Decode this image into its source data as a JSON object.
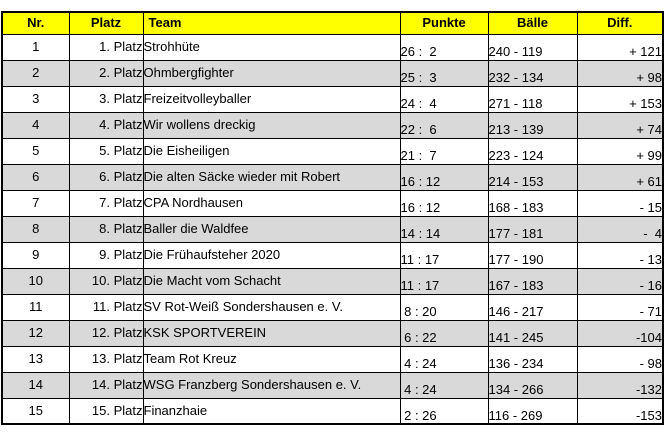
{
  "colors": {
    "header_bg": "#ffff00",
    "row_alt_bg": "#d9d9d9",
    "border": "#000000",
    "text": "#000000"
  },
  "table": {
    "columns": [
      {
        "key": "nr",
        "label": "Nr."
      },
      {
        "key": "platz",
        "label": "Platz"
      },
      {
        "key": "team",
        "label": "Team"
      },
      {
        "key": "punkte",
        "label": "Punkte"
      },
      {
        "key": "baelle",
        "label": "Bälle"
      },
      {
        "key": "diff",
        "label": "Diff."
      }
    ],
    "rows": [
      {
        "nr": "1",
        "platz": "1. Platz",
        "team": "Strohhüte",
        "punkte": "26 :  2",
        "baelle": "240 - 119",
        "diff": "+ 121"
      },
      {
        "nr": "2",
        "platz": "2. Platz",
        "team": "Ohmbergfighter",
        "punkte": "25 :  3",
        "baelle": "232 - 134",
        "diff": "+ 98"
      },
      {
        "nr": "3",
        "platz": "3. Platz",
        "team": "Freizeitvolleyballer",
        "punkte": "24 :  4",
        "baelle": "271 - 118",
        "diff": "+ 153"
      },
      {
        "nr": "4",
        "platz": "4. Platz",
        "team": "Wir wollens dreckig",
        "punkte": "22 :  6",
        "baelle": "213 - 139",
        "diff": "+ 74"
      },
      {
        "nr": "5",
        "platz": "5. Platz",
        "team": "Die Eisheiligen",
        "punkte": "21 :  7",
        "baelle": "223 - 124",
        "diff": "+ 99"
      },
      {
        "nr": "6",
        "platz": "6. Platz",
        "team": "Die alten Säcke wieder mit Robert",
        "punkte": "16 : 12",
        "baelle": "214 - 153",
        "diff": "+ 61"
      },
      {
        "nr": "7",
        "platz": "7. Platz",
        "team": "CPA Nordhausen",
        "punkte": "16 : 12",
        "baelle": "168 - 183",
        "diff": "- 15"
      },
      {
        "nr": "8",
        "platz": "8. Platz",
        "team": "Baller die Waldfee",
        "punkte": "14 : 14",
        "baelle": "177 - 181",
        "diff": "-  4"
      },
      {
        "nr": "9",
        "platz": "9. Platz",
        "team": "Die Frühaufsteher 2020",
        "punkte": "11 : 17",
        "baelle": "177 - 190",
        "diff": "- 13"
      },
      {
        "nr": "10",
        "platz": "10. Platz",
        "team": "Die Macht vom Schacht",
        "punkte": "11 : 17",
        "baelle": "167 - 183",
        "diff": "- 16"
      },
      {
        "nr": "11",
        "platz": "11. Platz",
        "team": "SV Rot-Weiß Sondershausen e. V.",
        "punkte": " 8 : 20",
        "baelle": "146 - 217",
        "diff": "- 71"
      },
      {
        "nr": "12",
        "platz": "12. Platz",
        "team": "KSK SPORTVEREIN",
        "punkte": " 6 : 22",
        "baelle": "141 - 245",
        "diff": "-104"
      },
      {
        "nr": "13",
        "platz": "13. Platz",
        "team": "Team Rot Kreuz",
        "punkte": " 4 : 24",
        "baelle": "136 - 234",
        "diff": "- 98"
      },
      {
        "nr": "14",
        "platz": "14. Platz",
        "team": "WSG Franzberg Sondershausen e. V.",
        "punkte": " 4 : 24",
        "baelle": "134 - 266",
        "diff": "-132"
      },
      {
        "nr": "15",
        "platz": "15. Platz",
        "team": "Finanzhaie",
        "punkte": " 2 : 26",
        "baelle": "116 - 269",
        "diff": "-153"
      }
    ]
  }
}
